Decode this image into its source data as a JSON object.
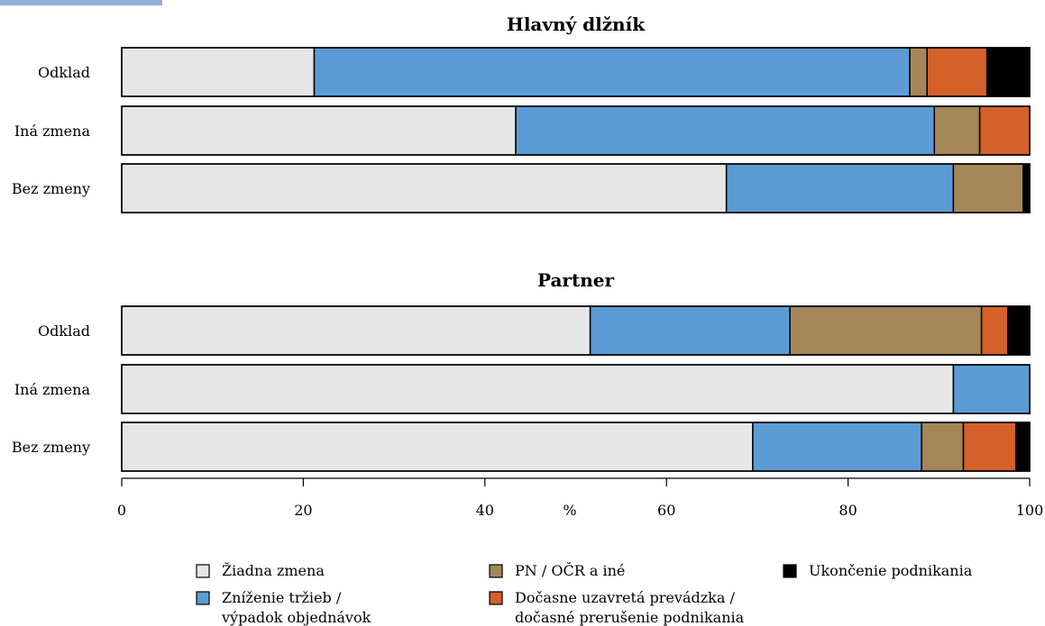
{
  "chart_data": [
    {
      "type": "bar",
      "orientation": "horizontal",
      "stacked": true,
      "title": "Hlavný dlžník",
      "categories": [
        "Odklad",
        "Iná zmena",
        "Bez zmeny"
      ],
      "series": [
        {
          "name": "Žiadna zmena",
          "color": "#e6e6e6",
          "values": [
            21.2,
            43.4,
            66.6
          ]
        },
        {
          "name": "Zníženie tržieb / výpadok objednávok",
          "color": "#5b9bd5",
          "values": [
            65.6,
            46.1,
            25.0
          ]
        },
        {
          "name": "PN / OČR a iné",
          "color": "#a58658",
          "values": [
            1.9,
            5.0,
            7.7
          ]
        },
        {
          "name": "Dočasne uzavretá prevádzka / dočasné prerušenie podnikania",
          "color": "#d4602a",
          "values": [
            6.6,
            5.5,
            0.0
          ]
        },
        {
          "name": "Ukončenie podnikania",
          "color": "#000000",
          "values": [
            4.7,
            0.0,
            0.7
          ]
        }
      ]
    },
    {
      "type": "bar",
      "orientation": "horizontal",
      "stacked": true,
      "title": "Partner",
      "categories": [
        "Odklad",
        "Iná zmena",
        "Bez zmeny"
      ],
      "series": [
        {
          "name": "Žiadna zmena",
          "color": "#e6e6e6",
          "values": [
            51.6,
            91.6,
            69.5
          ]
        },
        {
          "name": "Zníženie tržieb / výpadok objednávok",
          "color": "#5b9bd5",
          "values": [
            22.0,
            8.4,
            18.6
          ]
        },
        {
          "name": "PN / OČR a iné",
          "color": "#a58658",
          "values": [
            21.1,
            0.0,
            4.6
          ]
        },
        {
          "name": "Dočasne uzavretá prevádzka / dočasné prerušenie podnikania",
          "color": "#d4602a",
          "values": [
            2.9,
            0.0,
            5.8
          ]
        },
        {
          "name": "Ukončenie podnikania",
          "color": "#000000",
          "values": [
            2.4,
            0.0,
            1.5
          ]
        }
      ]
    }
  ],
  "axis": {
    "xlabel": "%",
    "xlim": [
      0,
      100
    ],
    "ticks": [
      0,
      20,
      40,
      60,
      80,
      100
    ]
  },
  "legend": {
    "items": [
      {
        "lines": [
          "Žiadna zmena"
        ],
        "color": "#e6e6e6"
      },
      {
        "lines": [
          "Zníženie tržieb /",
          "výpadok objednávok"
        ],
        "color": "#5b9bd5"
      },
      {
        "lines": [
          "PN / OČR a iné"
        ],
        "color": "#a58658"
      },
      {
        "lines": [
          "Dočasne uzavretá prevádzka /",
          "dočasné prerušenie podnikania"
        ],
        "color": "#d4602a"
      },
      {
        "lines": [
          "Ukončenie podnikania"
        ],
        "color": "#000000"
      }
    ]
  }
}
